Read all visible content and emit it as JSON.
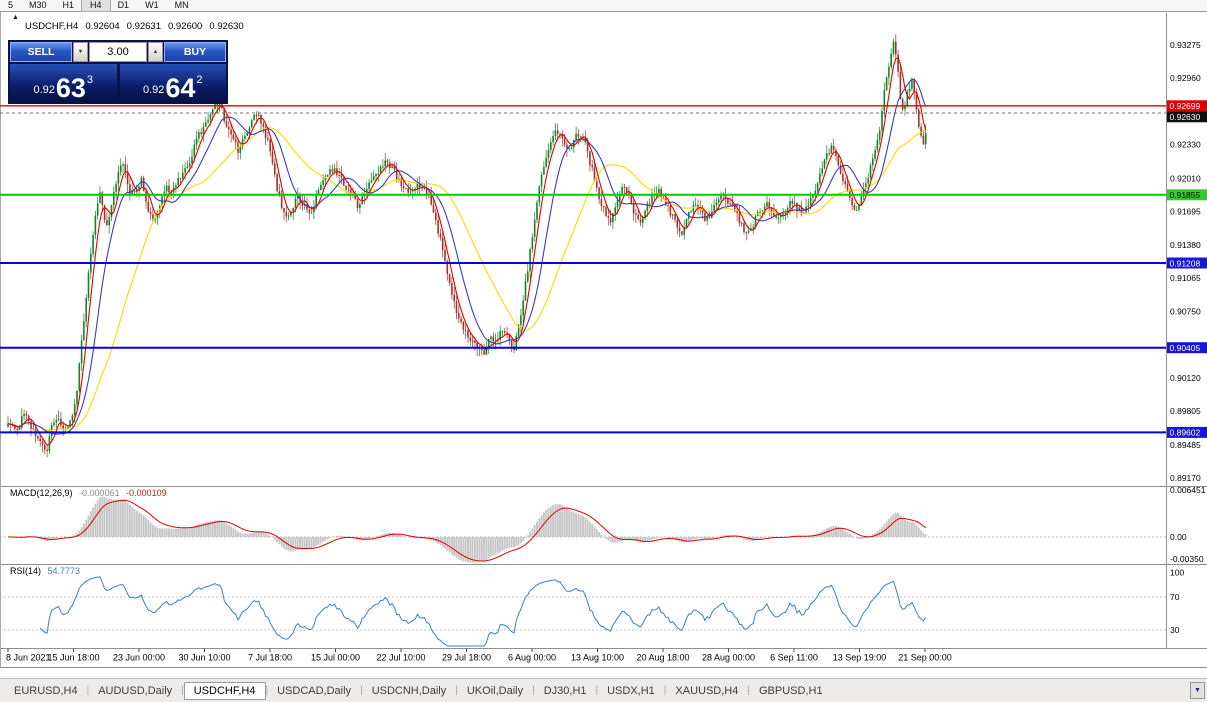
{
  "toolbar": {
    "timeframes": [
      {
        "label": "5"
      },
      {
        "label": "M30"
      },
      {
        "label": "H1"
      },
      {
        "label": "H4",
        "active": true
      },
      {
        "label": "D1"
      },
      {
        "label": "W1"
      },
      {
        "label": "MN"
      }
    ]
  },
  "icons": {
    "collapse_panel": "▲",
    "volume_up": "▲",
    "volume_down": "▼",
    "tab_scroll": "▼"
  },
  "chart_header": {
    "symbol": "USDCHF,H4",
    "open": "0.92604",
    "high": "0.92631",
    "low": "0.92600",
    "close": "0.92630"
  },
  "trade_panel": {
    "sell_label": "SELL",
    "buy_label": "BUY",
    "volume": "3.00",
    "sell_price": {
      "prefix": "0.92",
      "big": "63",
      "sup": "3"
    },
    "buy_price": {
      "prefix": "0.92",
      "big": "64",
      "sup": "2"
    }
  },
  "tab_separator": "|",
  "tabs": [
    {
      "label": "EURUSD,H4"
    },
    {
      "label": "AUDUSD,Daily"
    },
    {
      "label": "USDCHF,H4",
      "active": true
    },
    {
      "label": "USDCAD,Daily"
    },
    {
      "label": "USDCNH,Daily"
    },
    {
      "label": "UKOil,Daily"
    },
    {
      "label": "DJ30,H1"
    },
    {
      "label": "USDX,H1"
    },
    {
      "label": "XAUUSD,H4"
    },
    {
      "label": "GBPUSD,H1"
    }
  ],
  "chart_data": {
    "type": "candlestick",
    "symbol": "USDCHF",
    "period": "H4",
    "y_axis": {
      "max": 0.93275,
      "min": 0.8917
    },
    "price_scale_ticks": [
      {
        "text": "0.93275",
        "price": 0.93275
      },
      {
        "text": "0.92960",
        "price": 0.9296
      },
      {
        "text": "0.92330",
        "price": 0.9233
      },
      {
        "text": "0.92010",
        "price": 0.9201
      },
      {
        "text": "0.91695",
        "price": 0.91695
      },
      {
        "text": "0.91380",
        "price": 0.9138
      },
      {
        "text": "0.91065",
        "price": 0.91065
      },
      {
        "text": "0.90750",
        "price": 0.9075
      },
      {
        "text": "0.90120",
        "price": 0.9012
      },
      {
        "text": "0.89805",
        "price": 0.89805
      },
      {
        "text": "0.89485",
        "price": 0.89485
      },
      {
        "text": "0.89170",
        "price": 0.8917
      }
    ],
    "price_scale_badges": [
      {
        "text": "0.92699",
        "price": 0.92699,
        "bg": "#E00000",
        "fg": "#FFFFFF"
      },
      {
        "text": "0.92630",
        "price": 0.9263,
        "bg": "#111111",
        "fg": "#FFFFFF"
      },
      {
        "text": "0.91855",
        "price": 0.91855,
        "bg": "#2FCC2F",
        "fg": "#000000"
      },
      {
        "text": "0.91208",
        "price": 0.91208,
        "bg": "#1717D6",
        "fg": "#FFFFFF"
      },
      {
        "text": "0.90405",
        "price": 0.90405,
        "bg": "#1717D6",
        "fg": "#FFFFFF"
      },
      {
        "text": "0.89602",
        "price": 0.89602,
        "bg": "#1717D6",
        "fg": "#FFFFFF"
      }
    ],
    "horizontal_lines": [
      {
        "price": 0.92699,
        "color": "#E00000",
        "width": 1.3
      },
      {
        "price": 0.9263,
        "color": "#444444",
        "width": 0.8,
        "dash": "3,3"
      },
      {
        "price": 0.91855,
        "color": "#00CC00",
        "width": 2
      },
      {
        "price": 0.91208,
        "color": "#0000E0",
        "width": 2
      },
      {
        "price": 0.90405,
        "color": "#0000E0",
        "width": 2
      },
      {
        "price": 0.89602,
        "color": "#0000E0",
        "width": 2
      }
    ],
    "candle_colors": {
      "up": "#108420",
      "down": "#A33226"
    },
    "moving_averages": [
      {
        "period": 34,
        "color": "#FFD900"
      },
      {
        "period": 13,
        "color": "#3A3AC8"
      },
      {
        "period": 5,
        "color": "#E00000"
      }
    ],
    "macd": {
      "label": "MACD(12,26,9)",
      "value": "-0.000061",
      "signal_value": "-0.000109",
      "axis_labels": [
        {
          "text": "0.006451",
          "value": 0.006451
        },
        {
          "text": "0.00",
          "value": 0
        },
        {
          "text": "-0.00350",
          "value": -0.0035
        }
      ],
      "histogram_color": "#C6C6C6",
      "signal_color": "#E00000"
    },
    "rsi": {
      "label": "RSI(14)",
      "value": "54.7773",
      "axis_labels": [
        {
          "text": "100",
          "value": 100
        },
        {
          "text": "70",
          "value": 70
        },
        {
          "text": "30",
          "value": 30
        }
      ],
      "levels": [
        70,
        30
      ],
      "line_color": "#3E7FC1"
    },
    "time_labels": [
      "8 Jun 2021",
      "15 Jun 18:00",
      "23 Jun 00:00",
      "30 Jun 10:00",
      "7 Jul 18:00",
      "15 Jul 00:00",
      "22 Jul 10:00",
      "29 Jul 18:00",
      "6 Aug 00:00",
      "13 Aug 10:00",
      "20 Aug 18:00",
      "28 Aug 00:00",
      "6 Sep 11:00",
      "13 Sep 19:00",
      "21 Sep 00:00"
    ],
    "price_anchors": [
      [
        8,
        0.8972
      ],
      [
        16,
        0.896
      ],
      [
        24,
        0.8978
      ],
      [
        32,
        0.8962
      ],
      [
        40,
        0.895
      ],
      [
        46,
        0.8941
      ],
      [
        52,
        0.8968
      ],
      [
        58,
        0.8978
      ],
      [
        64,
        0.896
      ],
      [
        70,
        0.8968
      ],
      [
        76,
        0.8992
      ],
      [
        82,
        0.9048
      ],
      [
        88,
        0.9108
      ],
      [
        94,
        0.9158
      ],
      [
        100,
        0.9186
      ],
      [
        106,
        0.9152
      ],
      [
        112,
        0.918
      ],
      [
        118,
        0.9206
      ],
      [
        124,
        0.9216
      ],
      [
        130,
        0.9186
      ],
      [
        136,
        0.9192
      ],
      [
        142,
        0.92
      ],
      [
        148,
        0.9172
      ],
      [
        154,
        0.9158
      ],
      [
        160,
        0.9178
      ],
      [
        166,
        0.9192
      ],
      [
        172,
        0.9188
      ],
      [
        178,
        0.9198
      ],
      [
        184,
        0.9206
      ],
      [
        190,
        0.9216
      ],
      [
        196,
        0.9236
      ],
      [
        202,
        0.9248
      ],
      [
        208,
        0.9258
      ],
      [
        214,
        0.9268
      ],
      [
        220,
        0.9272
      ],
      [
        226,
        0.9252
      ],
      [
        232,
        0.9242
      ],
      [
        238,
        0.9228
      ],
      [
        244,
        0.9238
      ],
      [
        250,
        0.9252
      ],
      [
        256,
        0.9262
      ],
      [
        262,
        0.9254
      ],
      [
        268,
        0.9234
      ],
      [
        274,
        0.9205
      ],
      [
        280,
        0.918
      ],
      [
        286,
        0.9162
      ],
      [
        292,
        0.9172
      ],
      [
        298,
        0.9186
      ],
      [
        304,
        0.9176
      ],
      [
        310,
        0.9168
      ],
      [
        316,
        0.9182
      ],
      [
        322,
        0.9196
      ],
      [
        328,
        0.9206
      ],
      [
        334,
        0.9212
      ],
      [
        340,
        0.9202
      ],
      [
        346,
        0.9192
      ],
      [
        352,
        0.9184
      ],
      [
        358,
        0.9175
      ],
      [
        364,
        0.9188
      ],
      [
        370,
        0.9198
      ],
      [
        376,
        0.9206
      ],
      [
        382,
        0.9212
      ],
      [
        388,
        0.9217
      ],
      [
        394,
        0.9208
      ],
      [
        400,
        0.9198
      ],
      [
        406,
        0.9192
      ],
      [
        412,
        0.9188
      ],
      [
        418,
        0.9195
      ],
      [
        424,
        0.919
      ],
      [
        430,
        0.9182
      ],
      [
        436,
        0.9162
      ],
      [
        442,
        0.9134
      ],
      [
        448,
        0.9106
      ],
      [
        454,
        0.9084
      ],
      [
        460,
        0.9066
      ],
      [
        466,
        0.9054
      ],
      [
        472,
        0.9047
      ],
      [
        478,
        0.9041
      ],
      [
        484,
        0.9037
      ],
      [
        490,
        0.9052
      ],
      [
        496,
        0.9043
      ],
      [
        502,
        0.9059
      ],
      [
        508,
        0.9051
      ],
      [
        514,
        0.9041
      ],
      [
        520,
        0.9067
      ],
      [
        526,
        0.9104
      ],
      [
        532,
        0.9144
      ],
      [
        538,
        0.9184
      ],
      [
        544,
        0.9214
      ],
      [
        550,
        0.9237
      ],
      [
        556,
        0.9247
      ],
      [
        562,
        0.9237
      ],
      [
        568,
        0.9227
      ],
      [
        574,
        0.9239
      ],
      [
        580,
        0.9245
      ],
      [
        586,
        0.9231
      ],
      [
        592,
        0.9209
      ],
      [
        598,
        0.9187
      ],
      [
        604,
        0.9171
      ],
      [
        610,
        0.9161
      ],
      [
        616,
        0.9179
      ],
      [
        622,
        0.9195
      ],
      [
        628,
        0.9187
      ],
      [
        634,
        0.9169
      ],
      [
        640,
        0.9159
      ],
      [
        646,
        0.9171
      ],
      [
        652,
        0.9184
      ],
      [
        658,
        0.9191
      ],
      [
        664,
        0.9181
      ],
      [
        670,
        0.9169
      ],
      [
        676,
        0.9157
      ],
      [
        682,
        0.9149
      ],
      [
        688,
        0.9165
      ],
      [
        694,
        0.9179
      ],
      [
        700,
        0.9171
      ],
      [
        706,
        0.9161
      ],
      [
        712,
        0.9169
      ],
      [
        718,
        0.9179
      ],
      [
        724,
        0.9185
      ],
      [
        730,
        0.9177
      ],
      [
        736,
        0.9167
      ],
      [
        742,
        0.9155
      ],
      [
        748,
        0.9147
      ],
      [
        754,
        0.9159
      ],
      [
        760,
        0.9171
      ],
      [
        766,
        0.9179
      ],
      [
        772,
        0.9171
      ],
      [
        778,
        0.9161
      ],
      [
        784,
        0.9169
      ],
      [
        790,
        0.9179
      ],
      [
        796,
        0.9175
      ],
      [
        802,
        0.9167
      ],
      [
        808,
        0.9177
      ],
      [
        814,
        0.9189
      ],
      [
        820,
        0.9204
      ],
      [
        826,
        0.9221
      ],
      [
        832,
        0.9234
      ],
      [
        838,
        0.9217
      ],
      [
        844,
        0.9197
      ],
      [
        850,
        0.9181
      ],
      [
        856,
        0.9171
      ],
      [
        862,
        0.9187
      ],
      [
        868,
        0.9204
      ],
      [
        874,
        0.9221
      ],
      [
        880,
        0.9251
      ],
      [
        886,
        0.9294
      ],
      [
        891,
        0.9321
      ],
      [
        894,
        0.9329
      ],
      [
        897,
        0.9309
      ],
      [
        900,
        0.9281
      ],
      [
        903,
        0.9261
      ],
      [
        906,
        0.9274
      ],
      [
        909,
        0.9287
      ],
      [
        912,
        0.9295
      ],
      [
        915,
        0.9277
      ],
      [
        918,
        0.9257
      ],
      [
        921,
        0.9241
      ],
      [
        924,
        0.9229
      ],
      [
        928,
        0.9263
      ]
    ]
  }
}
